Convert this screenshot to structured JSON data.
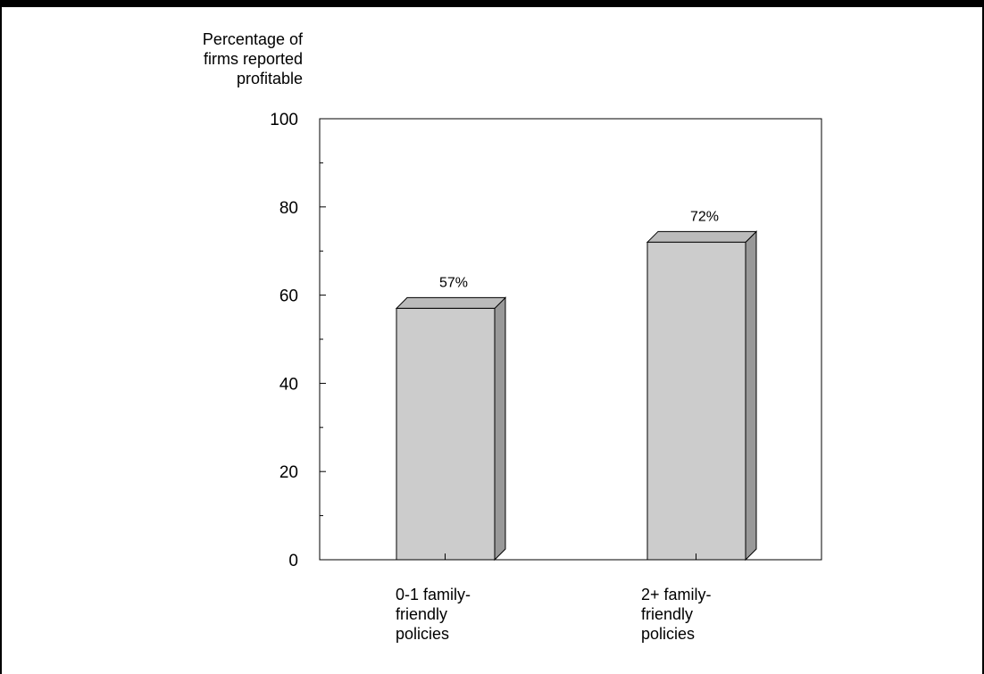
{
  "chart_data": {
    "type": "bar",
    "ylabel_lines": [
      "Percentage of",
      "firms reported",
      "profitable"
    ],
    "categories": [
      [
        "0-1 family-",
        "friendly",
        "policies"
      ],
      [
        "2+ family-",
        "friendly",
        "policies"
      ]
    ],
    "values": [
      57,
      72
    ],
    "data_labels": [
      "57%",
      "72%"
    ],
    "ylim": [
      0,
      100
    ],
    "yticks": [
      0,
      20,
      40,
      60,
      80,
      100
    ],
    "grid": false,
    "bar_color": "#cccccc",
    "bar_side_color": "#999999",
    "bar_top_color": "#bbbbbb"
  }
}
